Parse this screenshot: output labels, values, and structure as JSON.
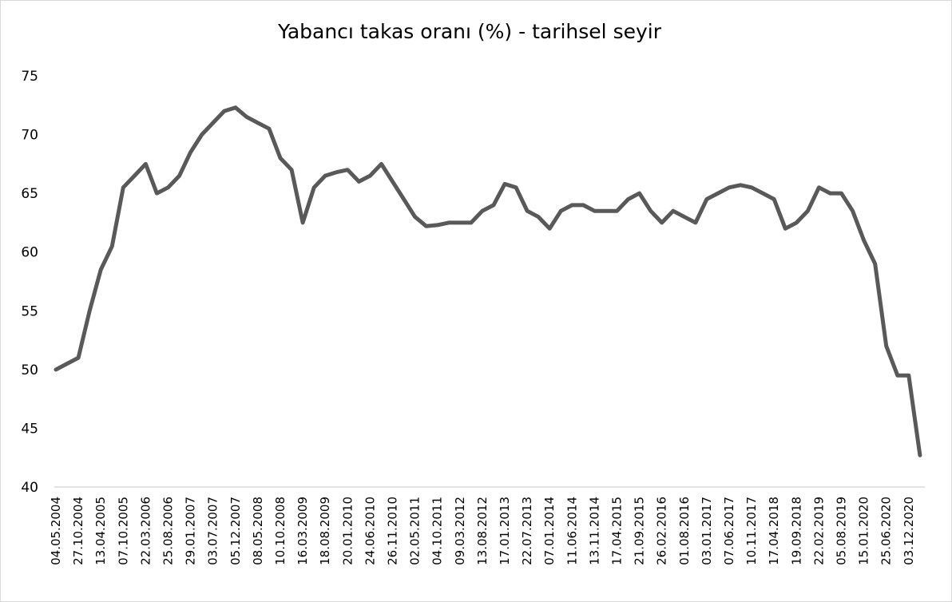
{
  "chart_data": {
    "type": "line",
    "title": "Yabancı takas oranı (%) - tarihsel seyir",
    "categories": [
      "04.05.2004",
      null,
      "27.10.2004",
      null,
      "13.04.2005",
      null,
      "07.10.2005",
      null,
      "22.03.2006",
      null,
      "25.08.2006",
      null,
      "29.01.2007",
      null,
      "03.07.2007",
      null,
      "05.12.2007",
      null,
      "08.05.2008",
      null,
      "10.10.2008",
      null,
      "16.03.2009",
      null,
      "18.08.2009",
      null,
      "20.01.2010",
      null,
      "24.06.2010",
      null,
      "26.11.2010",
      null,
      "02.05.2011",
      null,
      "04.10.2011",
      null,
      "09.03.2012",
      null,
      "13.08.2012",
      null,
      "17.01.2013",
      null,
      "22.07.2013",
      null,
      "07.01.2014",
      null,
      "11.06.2014",
      null,
      "13.11.2014",
      null,
      "17.04.2015",
      null,
      "21.09.2015",
      null,
      "26.02.2016",
      null,
      "01.08.2016",
      null,
      "03.01.2017",
      null,
      "07.06.2017",
      null,
      "10.11.2017",
      null,
      "17.04.2018",
      null,
      "19.09.2018",
      null,
      "22.02.2019",
      null,
      "05.08.2019",
      null,
      "15.01.2020",
      null,
      "25.06.2020",
      null,
      "03.12.2020",
      null
    ],
    "values": [
      50,
      50.5,
      51,
      55,
      58.5,
      60.5,
      65.5,
      66.5,
      67.5,
      65,
      65.5,
      66.5,
      68.5,
      70,
      71,
      72,
      72.3,
      71.5,
      71,
      70.5,
      68,
      67,
      62.5,
      65.5,
      66.5,
      66.8,
      67,
      66,
      66.5,
      67.5,
      66,
      64.5,
      63,
      62.2,
      62.3,
      62.5,
      62.5,
      62.5,
      63.5,
      64,
      65.8,
      65.5,
      63.5,
      63,
      62,
      63.5,
      64,
      64,
      63.5,
      63.5,
      63.5,
      64.5,
      65,
      63.5,
      62.5,
      63.5,
      63,
      62.5,
      64.5,
      65,
      65.5,
      65.7,
      65.5,
      65,
      64.5,
      62,
      62.5,
      63.5,
      65.5,
      65,
      65,
      63.5,
      61,
      59,
      52,
      49.5,
      49.5,
      42.7
    ],
    "color": "#595959",
    "ylim": [
      40,
      75
    ],
    "yticks": [
      40,
      45,
      50,
      55,
      60,
      65,
      70,
      75
    ]
  }
}
